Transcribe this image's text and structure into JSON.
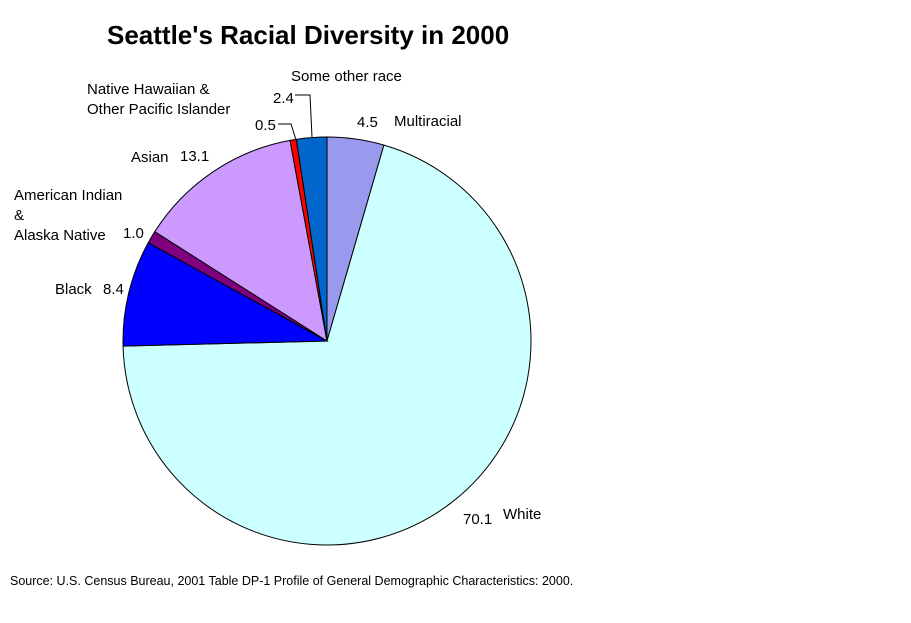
{
  "title": "Seattle's Racial Diversity in 2000",
  "source": "Source: U.S. Census Bureau, 2001 Table DP-1 Profile of General Demographic Characteristics: 2000.",
  "chart_data": {
    "type": "pie",
    "title": "Seattle's Racial Diversity in 2000",
    "units": "percent of population",
    "start_angle_deg": 0,
    "direction": "clockwise",
    "legend_position": "none",
    "slices": [
      {
        "label": "Multiracial",
        "value": 4.5,
        "color": "#9999EE"
      },
      {
        "label": "White",
        "value": 70.1,
        "color": "#CCFFFF"
      },
      {
        "label": "Black",
        "value": 8.4,
        "color": "#0000FF"
      },
      {
        "label": "American Indian & Alaska Native",
        "value": 1.0,
        "color": "#800080"
      },
      {
        "label": "Asian",
        "value": 13.1,
        "color": "#CC99FF"
      },
      {
        "label": "Native Hawaiian & Other Pacific Islander",
        "value": 0.5,
        "color": "#FF0000"
      },
      {
        "label": "Some other race",
        "value": 2.4,
        "color": "#0066CC"
      }
    ]
  },
  "callouts": {
    "some_other_race": {
      "label": "Some other race",
      "value": "2.4"
    },
    "native_hawaiian": {
      "label": "Native Hawaiian &\nOther Pacific Islander",
      "value": "0.5"
    },
    "multiracial": {
      "label": "Multiracial",
      "value": "4.5"
    },
    "asian": {
      "label": "Asian",
      "value": "13.1"
    },
    "american_indian": {
      "label": "American Indian\n&\nAlaska Native",
      "value": "1.0"
    },
    "black": {
      "label": "Black",
      "value": "8.4"
    },
    "white": {
      "label": "White",
      "value": "70.1"
    }
  }
}
